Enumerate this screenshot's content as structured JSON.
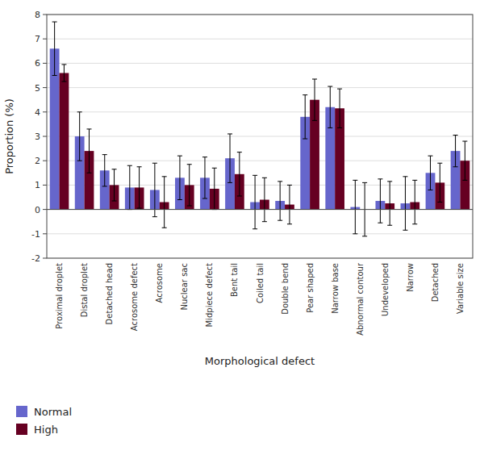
{
  "chart_data": {
    "type": "bar",
    "categories": [
      "Proximal droplet",
      "Distal droplet",
      "Detached head",
      "Acrosome defect",
      "Acrosome",
      "Nuclear sac",
      "Midpiece defect",
      "Bent tail",
      "Coiled tail",
      "Double bend",
      "Pear shaped",
      "Narrow base",
      "Abnormal contour",
      "Undeveloped",
      "Narrow",
      "Detached",
      "Variable size"
    ],
    "series": [
      {
        "name": "Normal",
        "color": "#6666cc",
        "values": [
          6.6,
          3.0,
          1.6,
          0.9,
          0.8,
          1.3,
          1.3,
          2.1,
          0.3,
          0.35,
          3.8,
          4.2,
          0.1,
          0.35,
          0.25,
          1.5,
          2.4
        ],
        "errors": [
          1.1,
          1.0,
          0.65,
          0.9,
          1.1,
          0.9,
          0.85,
          1.0,
          1.1,
          0.8,
          0.9,
          0.85,
          1.1,
          0.9,
          1.1,
          0.7,
          0.65
        ]
      },
      {
        "name": "High",
        "color": "#660022",
        "values": [
          5.6,
          2.4,
          1.0,
          0.9,
          0.3,
          1.0,
          0.85,
          1.45,
          0.4,
          0.2,
          4.5,
          4.15,
          0.0,
          0.25,
          0.3,
          1.1,
          2.0
        ],
        "errors": [
          0.35,
          0.9,
          0.65,
          0.85,
          1.05,
          0.85,
          0.85,
          0.9,
          0.9,
          0.8,
          0.85,
          0.8,
          1.1,
          0.9,
          0.9,
          0.8,
          0.8
        ]
      }
    ],
    "xlabel": "Morphological defect",
    "ylabel": "Proportion (%)",
    "ylim": [
      -2,
      8
    ],
    "yticks": [
      -2,
      -1,
      0,
      1,
      2,
      3,
      4,
      5,
      6,
      7,
      8
    ],
    "grid": true,
    "legend": "lower left"
  }
}
